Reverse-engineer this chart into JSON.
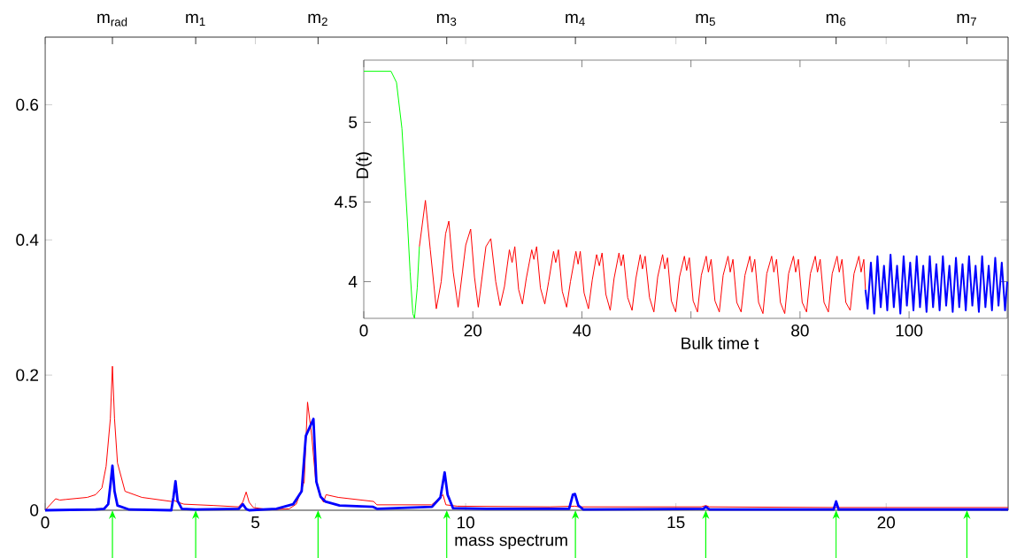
{
  "chart_data": [
    {
      "type": "line",
      "xlabel": "mass spectrum",
      "xlim": [
        0,
        22.9
      ],
      "xticks": [
        0,
        5,
        10,
        15,
        20
      ],
      "ylim": [
        0,
        0.7
      ],
      "yticks": [
        0,
        0.2,
        0.4,
        0.6
      ],
      "annotations": [
        {
          "text": "m$_{rad}$",
          "x": 1.6
        },
        {
          "text": "m$_{1}$",
          "x": 3.58
        },
        {
          "text": "m$_{2}$",
          "x": 6.49
        },
        {
          "text": "m$_{3}$",
          "x": 9.55
        },
        {
          "text": "m$_{4}$",
          "x": 12.61
        },
        {
          "text": "m$_{5}$",
          "x": 15.71
        },
        {
          "text": "m$_{6}$",
          "x": 18.81
        },
        {
          "text": "m$_{7}$",
          "x": 21.92
        }
      ],
      "series": [
        {
          "color": "#ff0000",
          "x": [
            0,
            0.25,
            0.35,
            0.5,
            1.0,
            1.2,
            1.35,
            1.45,
            1.55,
            1.6,
            1.65,
            1.72,
            1.9,
            2.3,
            3.0,
            3.05,
            3.15,
            3.3,
            4.0,
            4.6,
            4.7,
            4.78,
            4.85,
            4.95,
            5.3,
            5.8,
            5.97,
            6.16,
            6.24,
            6.28,
            6.34,
            6.43,
            6.58,
            6.62,
            6.68,
            6.97,
            7.81,
            7.89,
            8.5,
            9.19,
            9.34,
            9.46,
            9.53,
            9.8,
            12.0,
            12.6,
            12.7,
            15.6,
            15.71,
            15.8,
            18.8,
            22.9
          ],
          "values": [
            0,
            0.017,
            0.015,
            0.016,
            0.019,
            0.023,
            0.033,
            0.065,
            0.135,
            0.213,
            0.135,
            0.07,
            0.028,
            0.019,
            0.013,
            0.015,
            0.012,
            0.009,
            0.007,
            0.005,
            0.012,
            0.027,
            0.012,
            0.004,
            0.001,
            0.002,
            0.009,
            0.042,
            0.16,
            null,
            0.11,
            0.047,
            0.016,
            0.012,
            0.023,
            0.019,
            0.013,
            0.008,
            0.008,
            0.008,
            0.016,
            0.023,
            0.008,
            0.006,
            0.005,
            0.006,
            0.005,
            0.005,
            0.007,
            0.005,
            0.004,
            0.004
          ]
        },
        {
          "color": "#0000ff",
          "x": [
            0,
            1.2,
            1.4,
            1.5,
            1.56,
            1.6,
            1.65,
            1.72,
            2.0,
            3.0,
            3.05,
            3.1,
            3.15,
            3.25,
            3.58,
            4.6,
            4.7,
            4.78,
            4.85,
            5.5,
            5.9,
            6.1,
            6.2,
            6.27,
            6.33,
            6.38,
            6.45,
            6.55,
            6.66,
            7.0,
            7.8,
            7.9,
            9.2,
            9.4,
            9.5,
            9.57,
            9.7,
            10.5,
            12.46,
            12.55,
            12.6,
            12.68,
            12.8,
            15.65,
            15.71,
            15.8,
            18.75,
            18.81,
            18.87,
            21.92,
            22.9
          ],
          "values": [
            0,
            0.001,
            0.002,
            0.009,
            0.042,
            0.066,
            0.028,
            0.007,
            0.001,
            0,
            0.019,
            0.043,
            0.014,
            0.002,
            0.001,
            0.002,
            0.009,
            0.002,
            0,
            0.002,
            0.009,
            0.028,
            0.11,
            null,
            null,
            0.135,
            0.042,
            0.02,
            0.013,
            0.007,
            0.005,
            0.002,
            0.005,
            0.019,
            0.056,
            0.023,
            0.003,
            0.002,
            0.002,
            0.023,
            0.024,
            0.007,
            0.001,
            0.002,
            0.005,
            0.001,
            0.001,
            0.013,
            0.001,
            0.001,
            0.001
          ]
        }
      ]
    },
    {
      "type": "line",
      "xlabel": "Bulk time t",
      "ylabel": "D(t)",
      "xlim": [
        0,
        118
      ],
      "xticks": [
        0,
        20,
        40,
        {
          "value": 60,
          "label": null
        },
        80,
        100
      ],
      "ylim": [
        3.77,
        5.39
      ],
      "yticks": [
        4,
        4.5,
        5
      ],
      "series": [
        {
          "color": "#00ff00",
          "x": [
            0,
            5,
            6,
            7,
            8,
            8.5,
            9,
            9.3,
            9.8,
            10.2
          ],
          "values": [
            5.32,
            5.32,
            5.25,
            4.96,
            4.38,
            4.06,
            3.8,
            3.77,
            3.96,
            4.22
          ]
        },
        {
          "color": "#ff0000",
          "x": [
            10.2,
            11.3,
            12.2,
            13.3,
            14.2,
            15.0,
            15.6,
            16.4,
            17.3,
            18.7,
            19.6,
            20.3,
            21.0,
            22.4,
            23.3,
            24.2,
            25.0,
            25.8,
            26.7,
            27.2,
            27.7,
            28.4,
            29.1,
            29.8,
            30.8,
            31.2,
            31.7,
            32.4,
            33.2,
            33.9,
            34.8,
            35.2,
            35.7,
            36.4,
            37.2,
            37.9,
            38.9,
            39.3,
            39.7,
            40.4,
            41.2,
            41.9,
            42.7,
            43.2,
            43.7,
            44.4,
            45.2,
            45.9,
            46.8,
            47.2,
            47.6,
            48.4,
            49.2,
            49.9,
            50.7,
            51.1,
            51.6,
            52.4,
            53.2,
            53.9,
            54.8,
            55.2,
            55.7,
            56.4,
            57.2,
            57.9,
            58.8,
            59.2,
            59.7,
            60.4,
            61.2,
            61.9,
            62.8,
            63.2,
            63.7,
            64.4,
            65.2,
            65.9,
            66.8,
            67.2,
            67.7,
            68.4,
            69.2,
            69.9,
            70.8,
            71.2,
            71.7,
            72.4,
            73.2,
            73.9,
            74.8,
            75.2,
            75.7,
            76.4,
            77.2,
            77.9,
            78.8,
            79.2,
            79.7,
            80.4,
            81.2,
            81.9,
            82.8,
            83.2,
            83.7,
            84.4,
            85.2,
            85.9,
            86.8,
            87.2,
            87.7,
            88.4,
            89.2,
            89.9,
            90.8,
            91.2,
            91.7,
            92.0
          ],
          "values": [
            4.22,
            4.51,
            4.2,
            3.83,
            4.0,
            4.3,
            4.38,
            4.06,
            3.84,
            4.23,
            4.33,
            4.03,
            3.84,
            4.22,
            4.27,
            4.0,
            3.85,
            3.97,
            4.2,
            4.12,
            4.22,
            3.95,
            3.86,
            4.02,
            4.2,
            4.14,
            4.22,
            3.96,
            3.86,
            4.0,
            4.19,
            4.12,
            4.2,
            3.94,
            3.84,
            4.0,
            4.19,
            4.11,
            4.19,
            3.93,
            3.83,
            4.01,
            4.17,
            4.1,
            4.18,
            3.92,
            3.82,
            4.02,
            4.18,
            4.1,
            4.17,
            3.9,
            3.82,
            4.02,
            4.17,
            4.08,
            4.16,
            3.9,
            3.81,
            4.03,
            4.17,
            4.08,
            4.15,
            3.88,
            3.81,
            4.03,
            4.16,
            4.07,
            4.15,
            3.88,
            3.81,
            4.04,
            4.16,
            4.06,
            4.14,
            3.88,
            3.81,
            4.04,
            4.16,
            4.06,
            4.14,
            3.87,
            3.81,
            4.04,
            4.16,
            4.06,
            4.14,
            3.87,
            3.8,
            4.05,
            4.16,
            4.06,
            4.14,
            3.87,
            3.8,
            4.05,
            4.16,
            4.06,
            4.14,
            3.87,
            3.81,
            4.05,
            4.16,
            4.06,
            4.14,
            3.87,
            3.81,
            4.05,
            4.16,
            4.06,
            4.14,
            3.87,
            3.82,
            4.05,
            4.16,
            4.06,
            4.14,
            3.95
          ]
        },
        {
          "color": "#0000ff",
          "x": [
            92.0,
            92.4,
            93.0,
            93.6,
            94.2,
            94.8,
            95.4,
            96.0,
            96.6,
            97.2,
            97.8,
            98.4,
            99.0,
            99.6,
            100.2,
            100.8,
            101.4,
            102.0,
            102.6,
            103.2,
            103.8,
            104.4,
            105.0,
            105.6,
            106.2,
            106.8,
            107.4,
            108.0,
            108.6,
            109.2,
            109.8,
            110.4,
            111.0,
            111.6,
            112.2,
            112.8,
            113.4,
            114.0,
            114.6,
            115.2,
            115.8,
            116.4,
            117.0,
            117.6,
            118.0
          ],
          "values": [
            3.95,
            3.83,
            4.12,
            3.8,
            4.16,
            3.84,
            4.1,
            3.82,
            4.17,
            3.84,
            4.1,
            3.8,
            4.16,
            3.85,
            4.12,
            3.82,
            4.16,
            3.84,
            4.1,
            3.81,
            4.16,
            3.84,
            4.11,
            3.82,
            4.16,
            3.85,
            4.1,
            3.81,
            4.15,
            3.84,
            4.11,
            3.82,
            4.16,
            3.85,
            4.1,
            3.81,
            4.16,
            3.84,
            4.1,
            3.82,
            4.15,
            3.85,
            4.12,
            3.82,
            4.0
          ]
        }
      ]
    }
  ]
}
